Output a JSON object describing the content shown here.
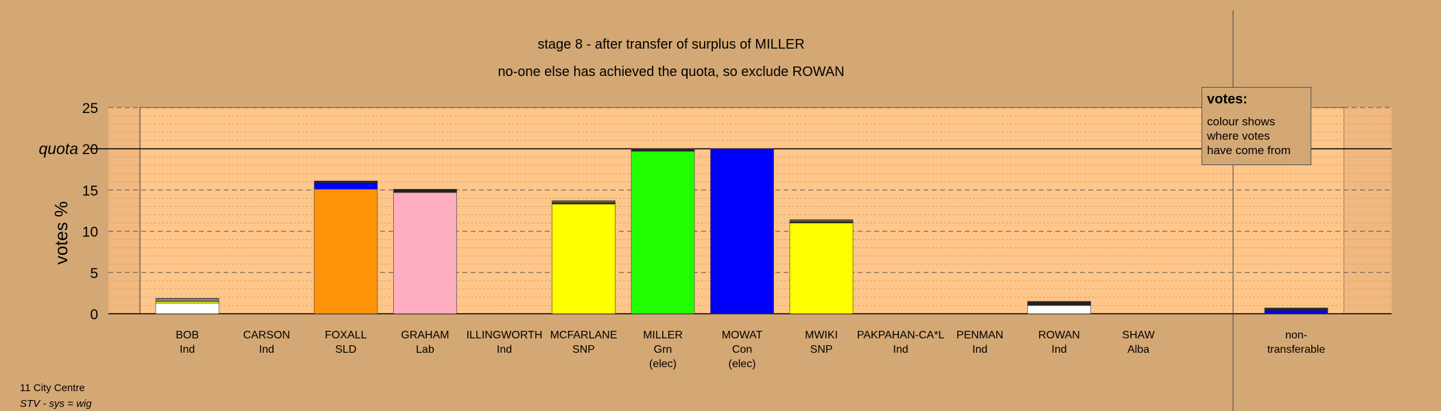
{
  "chart_data": {
    "type": "bar",
    "stacked": true,
    "title": "stage 8 - after transfer of surplus of MILLER",
    "subtitle": "no-one else has achieved the quota, so exclude ROWAN",
    "ylabel": "votes %",
    "ylim": [
      0,
      25
    ],
    "yticks": [
      0,
      5,
      10,
      15,
      20,
      25
    ],
    "quota": 20,
    "quota_label": "quota",
    "grid": true,
    "legend_position": "top-right",
    "categories": [
      {
        "name": "BOB",
        "party": "Ind",
        "note": ""
      },
      {
        "name": "CARSON",
        "party": "Ind",
        "note": ""
      },
      {
        "name": "FOXALL",
        "party": "SLD",
        "note": ""
      },
      {
        "name": "GRAHAM",
        "party": "Lab",
        "note": ""
      },
      {
        "name": "ILLINGWORTH",
        "party": "Ind",
        "note": ""
      },
      {
        "name": "MCFARLANE",
        "party": "SNP",
        "note": ""
      },
      {
        "name": "MILLER",
        "party": "Grn",
        "note": "(elec)"
      },
      {
        "name": "MOWAT",
        "party": "Con",
        "note": "(elec)"
      },
      {
        "name": "MWIKI",
        "party": "SNP",
        "note": ""
      },
      {
        "name": "PAKPAHAN-CA*L",
        "party": "Ind",
        "note": ""
      },
      {
        "name": "PENMAN",
        "party": "Ind",
        "note": ""
      },
      {
        "name": "ROWAN",
        "party": "Ind",
        "note": ""
      },
      {
        "name": "SHAW",
        "party": "Alba",
        "note": ""
      }
    ],
    "bars": [
      {
        "segments": [
          {
            "value": 1.3,
            "color": "#ffffff"
          },
          {
            "value": 0.2,
            "color": "#ffff00"
          },
          {
            "value": 0.1,
            "color": "#222222"
          },
          {
            "value": 0.15,
            "color": "#ffffff"
          },
          {
            "value": 0.1,
            "color": "#222222"
          }
        ]
      },
      {
        "segments": []
      },
      {
        "segments": [
          {
            "value": 15.1,
            "color": "#ff9408"
          },
          {
            "value": 0.8,
            "color": "#0000ff"
          },
          {
            "value": 0.2,
            "color": "#222222"
          }
        ]
      },
      {
        "segments": [
          {
            "value": 14.7,
            "color": "#ffaec0"
          },
          {
            "value": 0.4,
            "color": "#222222"
          }
        ]
      },
      {
        "segments": []
      },
      {
        "segments": [
          {
            "value": 13.3,
            "color": "#ffff00"
          },
          {
            "value": 0.2,
            "color": "#222222"
          },
          {
            "value": 0.1,
            "color": "#ffff00"
          },
          {
            "value": 0.1,
            "color": "#222222"
          }
        ]
      },
      {
        "segments": [
          {
            "value": 19.7,
            "color": "#22ff00"
          },
          {
            "value": 0.3,
            "color": "#222222"
          }
        ]
      },
      {
        "segments": [
          {
            "value": 20.0,
            "color": "#0000ff"
          }
        ]
      },
      {
        "segments": [
          {
            "value": 11.0,
            "color": "#ffff00"
          },
          {
            "value": 0.2,
            "color": "#222222"
          },
          {
            "value": 0.1,
            "color": "#ffff00"
          },
          {
            "value": 0.1,
            "color": "#222222"
          }
        ]
      },
      {
        "segments": []
      },
      {
        "segments": []
      },
      {
        "segments": [
          {
            "value": 1.0,
            "color": "#ffffff"
          },
          {
            "value": 0.5,
            "color": "#222222"
          }
        ]
      },
      {
        "segments": []
      }
    ],
    "nontransferable": {
      "label_line1": "non-",
      "label_line2": "transferable",
      "segments": [
        {
          "value": 0.4,
          "color": "#0000ff"
        },
        {
          "value": 0.3,
          "color": "#222222"
        }
      ]
    }
  },
  "legend": {
    "title": "votes:",
    "line1": "colour shows",
    "line2": "where votes",
    "line3": "have come from"
  },
  "footer": {
    "region": "11 City Centre",
    "method": "STV - sys = wig"
  },
  "colors": {
    "background": "#d4a874",
    "plot_area": "#ffc68a",
    "side_shade": "#f0b87e"
  }
}
